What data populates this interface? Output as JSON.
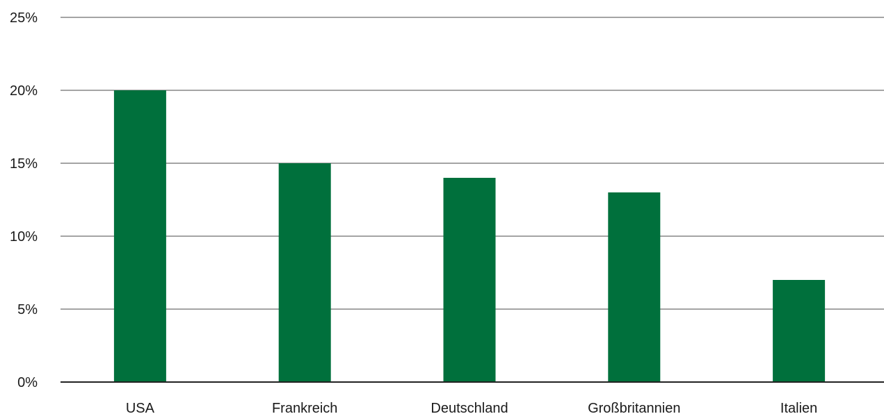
{
  "chart_data": {
    "type": "bar",
    "title": "",
    "xlabel": "",
    "ylabel": "",
    "categories": [
      "USA",
      "Frankreich",
      "Deutschland",
      "Großbritannien",
      "Italien"
    ],
    "values": [
      20,
      15,
      14,
      13,
      7
    ],
    "ylim": [
      0,
      25
    ],
    "yticks": [
      0,
      5,
      10,
      15,
      20,
      25
    ],
    "ytick_labels": [
      "0%",
      "5%",
      "10%",
      "15%",
      "20%",
      "25%"
    ],
    "grid": true,
    "bar_color": "#00703c",
    "grid_color": "#4a4a4a"
  }
}
